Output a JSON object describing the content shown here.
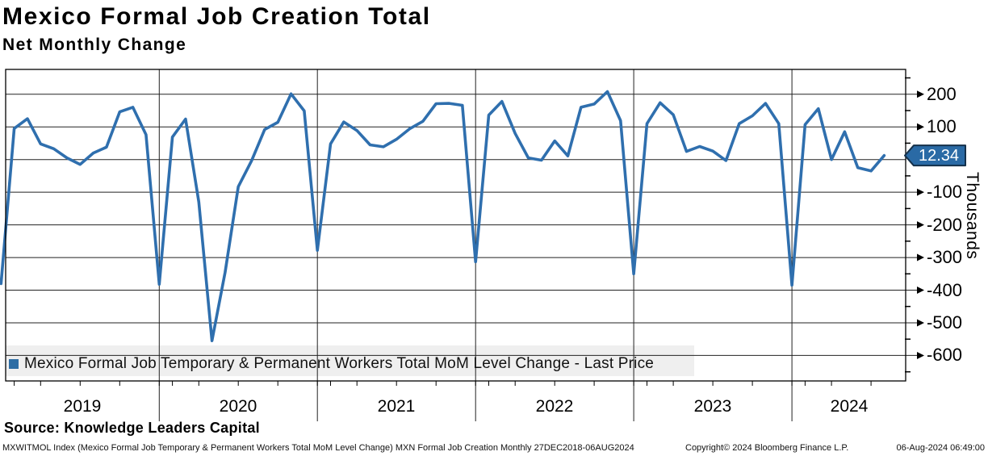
{
  "header": {
    "title": "Mexico Formal Job Creation Total",
    "subtitle": "Net Monthly Change"
  },
  "legend": {
    "label": "Mexico Formal Job Temporary & Permanent Workers Total MoM Level Change - Last Price",
    "marker_color": "#2e6da4",
    "background_color": "#efefef"
  },
  "y_axis": {
    "unit_label": "Thousands",
    "tick_labels": [
      "200",
      "100",
      "-100",
      "-200",
      "-300",
      "-400",
      "-500",
      "-600"
    ],
    "tick_values": [
      200,
      100,
      -100,
      -200,
      -300,
      -400,
      -500,
      -600
    ],
    "minor_tick_values": [
      250,
      150,
      50,
      -50,
      -150,
      -250,
      -350,
      -450,
      -550,
      -650
    ],
    "last_price_label": "12.34",
    "badge_fill": "#2a6aa5",
    "badge_border": "#14304a"
  },
  "x_axis": {
    "year_labels": [
      "2019",
      "2020",
      "2021",
      "2022",
      "2023",
      "2024"
    ]
  },
  "footer": {
    "source": "Source: Knowledge Leaders Capital",
    "meta": "MXWITMOL Index (Mexico Formal Job Temporary & Permanent Workers Total MoM Level Change) MXN Formal Job Creation  Monthly 27DEC2018-06AUG2024",
    "copyright": "Copyright© 2024 Bloomberg Finance L.P.",
    "timestamp": "06-Aug-2024 06:49:00"
  },
  "chart_data": {
    "type": "line",
    "title": "Mexico Formal Job Creation Total",
    "subtitle": "Net Monthly Change",
    "series_name": "Mexico Formal Job Temporary & Permanent Workers Total MoM Level Change - Last Price",
    "unit": "Thousands",
    "line_color": "#2f6fae",
    "grid": true,
    "legend_position": "bottom-left",
    "ylim": [
      -678,
      276
    ],
    "y_gridlines": [
      200,
      100,
      0,
      -100,
      -200,
      -300,
      -400,
      -500,
      -600
    ],
    "last_price": 12.34,
    "x": [
      "2018-12",
      "2019-01",
      "2019-02",
      "2019-03",
      "2019-04",
      "2019-05",
      "2019-06",
      "2019-07",
      "2019-08",
      "2019-09",
      "2019-10",
      "2019-11",
      "2019-12",
      "2020-01",
      "2020-02",
      "2020-03",
      "2020-04",
      "2020-05",
      "2020-06",
      "2020-07",
      "2020-08",
      "2020-09",
      "2020-10",
      "2020-11",
      "2020-12",
      "2021-01",
      "2021-02",
      "2021-03",
      "2021-04",
      "2021-05",
      "2021-06",
      "2021-07",
      "2021-08",
      "2021-09",
      "2021-10",
      "2021-11",
      "2021-12",
      "2022-01",
      "2022-02",
      "2022-03",
      "2022-04",
      "2022-05",
      "2022-06",
      "2022-07",
      "2022-08",
      "2022-09",
      "2022-10",
      "2022-11",
      "2022-12",
      "2023-01",
      "2023-02",
      "2023-03",
      "2023-04",
      "2023-05",
      "2023-06",
      "2023-07",
      "2023-08",
      "2023-09",
      "2023-10",
      "2023-11",
      "2023-12",
      "2024-01",
      "2024-02",
      "2024-03",
      "2024-04",
      "2024-05",
      "2024-06",
      "2024-07"
    ],
    "values": [
      -380,
      95,
      125,
      48,
      33,
      5,
      -15,
      20,
      38,
      146,
      160,
      76,
      -382,
      69,
      124,
      -130,
      -555,
      -345,
      -83,
      -4,
      92,
      114,
      201,
      149,
      -278,
      48,
      115,
      89,
      45,
      39,
      62,
      94,
      117,
      171,
      172,
      166,
      -313,
      136,
      178,
      80,
      5,
      -2,
      57,
      11,
      160,
      170,
      208,
      119,
      -350,
      110,
      174,
      137,
      25,
      40,
      26,
      -3,
      110,
      134,
      172,
      110,
      -385,
      107,
      156,
      0,
      85,
      -25,
      -35,
      12.34
    ]
  }
}
